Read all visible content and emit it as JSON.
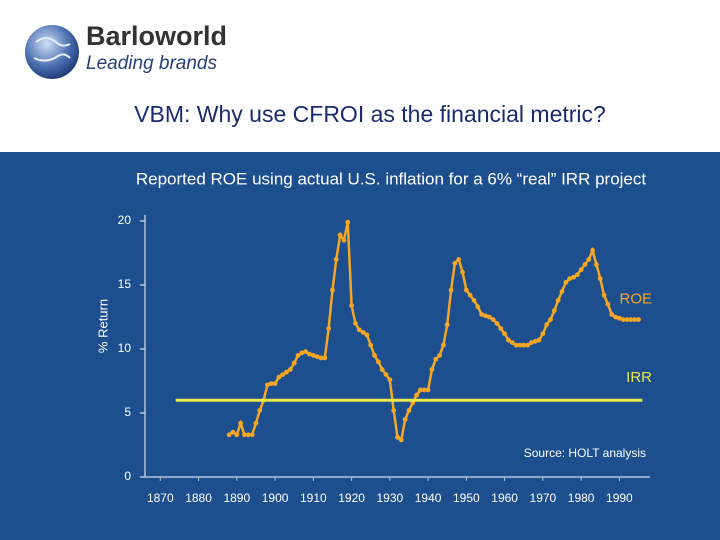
{
  "header": {
    "brand": "Barloworld",
    "tagline": "Leading brands",
    "title": "VBM: Why use CFROI as the financial metric?"
  },
  "chart_data": {
    "type": "line",
    "title": "Reported ROE using actual U.S. inflation for a 6% “real” IRR project",
    "y_label": "% Return",
    "xlim": [
      1866,
      1998
    ],
    "xticks": [
      1870,
      1880,
      1890,
      1900,
      1910,
      1920,
      1930,
      1940,
      1950,
      1960,
      1970,
      1980,
      1990
    ],
    "ylim": [
      0,
      20
    ],
    "yticks": [
      0,
      5,
      10,
      15,
      20
    ],
    "series": [
      {
        "name": "ROE",
        "color": "#f5a623",
        "x": [
          1888,
          1889,
          1890,
          1891,
          1892,
          1893,
          1894,
          1895,
          1896,
          1897,
          1898,
          1899,
          1900,
          1901,
          1902,
          1903,
          1904,
          1905,
          1906,
          1907,
          1908,
          1909,
          1910,
          1911,
          1912,
          1913,
          1914,
          1915,
          1916,
          1917,
          1918,
          1919,
          1920,
          1921,
          1922,
          1923,
          1924,
          1925,
          1926,
          1927,
          1928,
          1929,
          1930,
          1931,
          1932,
          1933,
          1934,
          1935,
          1936,
          1937,
          1938,
          1939,
          1940,
          1941,
          1942,
          1943,
          1944,
          1945,
          1946,
          1947,
          1948,
          1949,
          1950,
          1951,
          1952,
          1953,
          1954,
          1955,
          1956,
          1957,
          1958,
          1959,
          1960,
          1961,
          1962,
          1963,
          1964,
          1965,
          1966,
          1967,
          1968,
          1969,
          1970,
          1971,
          1972,
          1973,
          1974,
          1975,
          1976,
          1977,
          1978,
          1979,
          1980,
          1981,
          1982,
          1983,
          1984,
          1985,
          1986,
          1987,
          1988,
          1989,
          1990,
          1991,
          1992,
          1993,
          1994,
          1995
        ],
        "values": [
          3.3,
          3.5,
          3.3,
          4.2,
          3.3,
          3.3,
          3.3,
          4.2,
          5.2,
          6.0,
          7.2,
          7.3,
          7.3,
          7.8,
          8.0,
          8.2,
          8.4,
          8.9,
          9.5,
          9.7,
          9.8,
          9.6,
          9.5,
          9.4,
          9.3,
          9.3,
          11.6,
          14.6,
          17.0,
          18.9,
          18.5,
          19.9,
          13.4,
          12.0,
          11.5,
          11.3,
          11.1,
          10.3,
          9.5,
          9.0,
          8.4,
          8.0,
          7.6,
          5.2,
          3.1,
          2.9,
          4.5,
          5.2,
          5.8,
          6.4,
          6.8,
          6.8,
          6.8,
          8.4,
          9.2,
          9.5,
          10.3,
          11.9,
          14.6,
          16.7,
          17.0,
          16.0,
          14.6,
          14.2,
          13.8,
          13.3,
          12.7,
          12.6,
          12.5,
          12.3,
          12.0,
          11.6,
          11.2,
          10.7,
          10.5,
          10.3,
          10.3,
          10.3,
          10.3,
          10.5,
          10.6,
          10.7,
          11.2,
          11.9,
          12.3,
          13.0,
          13.8,
          14.5,
          15.2,
          15.5,
          15.6,
          15.8,
          16.2,
          16.6,
          17.0,
          17.7,
          16.6,
          15.5,
          14.2,
          13.5,
          12.7,
          12.5,
          12.4,
          12.3,
          12.3,
          12.3,
          12.3,
          12.3
        ]
      },
      {
        "name": "IRR",
        "color": "#e8e84a",
        "x": [
          1874,
          1996
        ],
        "values": [
          6,
          6
        ]
      }
    ],
    "annotations": [
      "Source: HOLT analysis"
    ]
  }
}
